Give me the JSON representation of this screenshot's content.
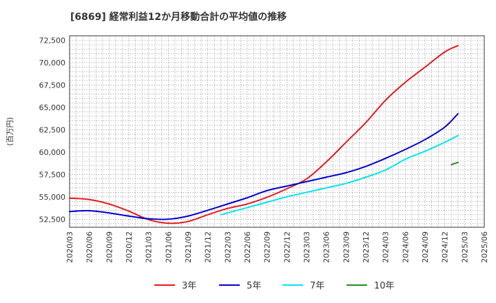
{
  "chart_data": {
    "type": "line",
    "title": "[6869]  経常利益12か月移動合計の平均値の推移",
    "ylabel": "(百万円)",
    "ylim": [
      51600,
      73000
    ],
    "y_ticks": [
      "52,500",
      "55,000",
      "57,500",
      "60,000",
      "62,500",
      "65,000",
      "67,500",
      "70,000",
      "72,500"
    ],
    "y_tick_values": [
      52500,
      55000,
      57500,
      60000,
      62500,
      65000,
      67500,
      70000,
      72500
    ],
    "categories": [
      "2020/03",
      "2020/06",
      "2020/09",
      "2020/12",
      "2021/03",
      "2021/06",
      "2021/09",
      "2021/12",
      "2022/03",
      "2022/06",
      "2022/09",
      "2022/12",
      "2023/03",
      "2023/06",
      "2023/09",
      "2023/12",
      "2024/03",
      "2024/06",
      "2024/09",
      "2024/12",
      "2025/03",
      "2025/06"
    ],
    "grid": true,
    "legend_position": "bottom",
    "series": [
      {
        "name": "3年",
        "color": "#e31a1c",
        "points": [
          [
            0,
            54850
          ],
          [
            1,
            54700
          ],
          [
            2,
            54200
          ],
          [
            3,
            53400
          ],
          [
            4,
            52450
          ],
          [
            5,
            52050
          ],
          [
            6,
            52250
          ],
          [
            7,
            53000
          ],
          [
            8,
            53700
          ],
          [
            9,
            54200
          ],
          [
            10,
            54950
          ],
          [
            11,
            55900
          ],
          [
            12,
            57000
          ],
          [
            13,
            58900
          ],
          [
            14,
            61100
          ],
          [
            15,
            63300
          ],
          [
            16,
            65800
          ],
          [
            17,
            67800
          ],
          [
            18,
            69500
          ],
          [
            19,
            71200
          ],
          [
            19.67,
            71900
          ]
        ]
      },
      {
        "name": "5年",
        "color": "#0000cc",
        "points": [
          [
            0,
            53350
          ],
          [
            1,
            53450
          ],
          [
            2,
            53200
          ],
          [
            3,
            52850
          ],
          [
            4,
            52550
          ],
          [
            5,
            52500
          ],
          [
            6,
            52850
          ],
          [
            7,
            53500
          ],
          [
            8,
            54200
          ],
          [
            9,
            54900
          ],
          [
            10,
            55700
          ],
          [
            11,
            56200
          ],
          [
            12,
            56700
          ],
          [
            13,
            57200
          ],
          [
            14,
            57700
          ],
          [
            15,
            58400
          ],
          [
            16,
            59300
          ],
          [
            17,
            60300
          ],
          [
            18,
            61400
          ],
          [
            19,
            62800
          ],
          [
            19.67,
            64300
          ]
        ]
      },
      {
        "name": "7年",
        "color": "#00e5ee",
        "points": [
          [
            7.67,
            53000
          ],
          [
            8,
            53200
          ],
          [
            9,
            53800
          ],
          [
            10,
            54400
          ],
          [
            11,
            55000
          ],
          [
            12,
            55500
          ],
          [
            13,
            56000
          ],
          [
            14,
            56500
          ],
          [
            15,
            57200
          ],
          [
            16,
            58000
          ],
          [
            17,
            59200
          ],
          [
            18,
            60100
          ],
          [
            19,
            61100
          ],
          [
            19.67,
            61850
          ]
        ]
      },
      {
        "name": "10年",
        "color": "#228b22",
        "points": [
          [
            19.33,
            58600
          ],
          [
            19.67,
            58850
          ]
        ]
      }
    ]
  }
}
